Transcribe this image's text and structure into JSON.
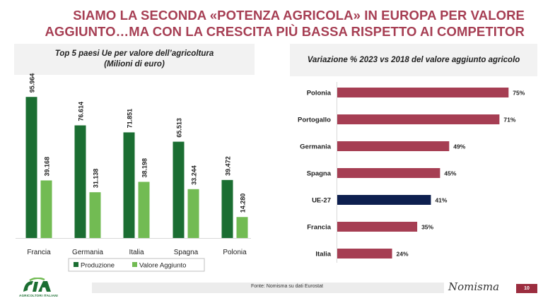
{
  "title": {
    "line1": "SIAMO LA SECONDA «POTENZA AGRICOLA» IN EUROPA PER VALORE",
    "line2": "AGGIUNTO…MA CON LA CRESCITA PIÙ  BASSA RISPETTO AI COMPETITOR",
    "color": "#a63e53"
  },
  "left_panel": {
    "title_line1": "Top 5 paesi Ue per valore dell’agricoltura",
    "title_line2": "(Milioni di euro)"
  },
  "right_panel": {
    "title": "Variazione % 2023 vs 2018 del valore aggiunto agricolo"
  },
  "chart_data": [
    {
      "type": "bar",
      "title": "Top 5 paesi Ue per valore dell’agricoltura (Milioni di euro)",
      "categories": [
        "Francia",
        "Germania",
        "Italia",
        "Spagna",
        "Polonia"
      ],
      "series": [
        {
          "name": "Produzione",
          "values": [
            95964,
            76614,
            71851,
            65513,
            39472
          ],
          "labels": [
            "95.964",
            "76.614",
            "71.851",
            "65.513",
            "39.472"
          ],
          "color": "#1b6e32"
        },
        {
          "name": "Valore Aggiunto",
          "values": [
            39168,
            31138,
            38198,
            33244,
            14280
          ],
          "labels": [
            "39.168",
            "31.138",
            "38.198",
            "33.244",
            "14.280"
          ],
          "color": "#72bb53"
        }
      ],
      "ylim": [
        0,
        110000
      ],
      "grid": false,
      "legend": "bottom"
    },
    {
      "type": "bar",
      "orientation": "horizontal",
      "title": "Variazione % 2023 vs 2018 del valore aggiunto agricolo",
      "categories": [
        "Polonia",
        "Portogallo",
        "Germania",
        "Spagna",
        "UE-27",
        "Francia",
        "Italia"
      ],
      "values": [
        75,
        71,
        49,
        45,
        41,
        35,
        24
      ],
      "labels": [
        "75%",
        "71%",
        "49%",
        "45%",
        "41%",
        "35%",
        "24%"
      ],
      "colors": [
        "#a63e53",
        "#a63e53",
        "#a63e53",
        "#a63e53",
        "#0d1f4f",
        "#a63e53",
        "#a63e53"
      ],
      "xlim": [
        0,
        78
      ],
      "grid": false
    }
  ],
  "footer": {
    "source": "Fonte: Nomisma su dati Eurostat",
    "brand": "Nomisma",
    "page": "10",
    "logo_caption": "AGRICOLTORI ITALIANI"
  }
}
